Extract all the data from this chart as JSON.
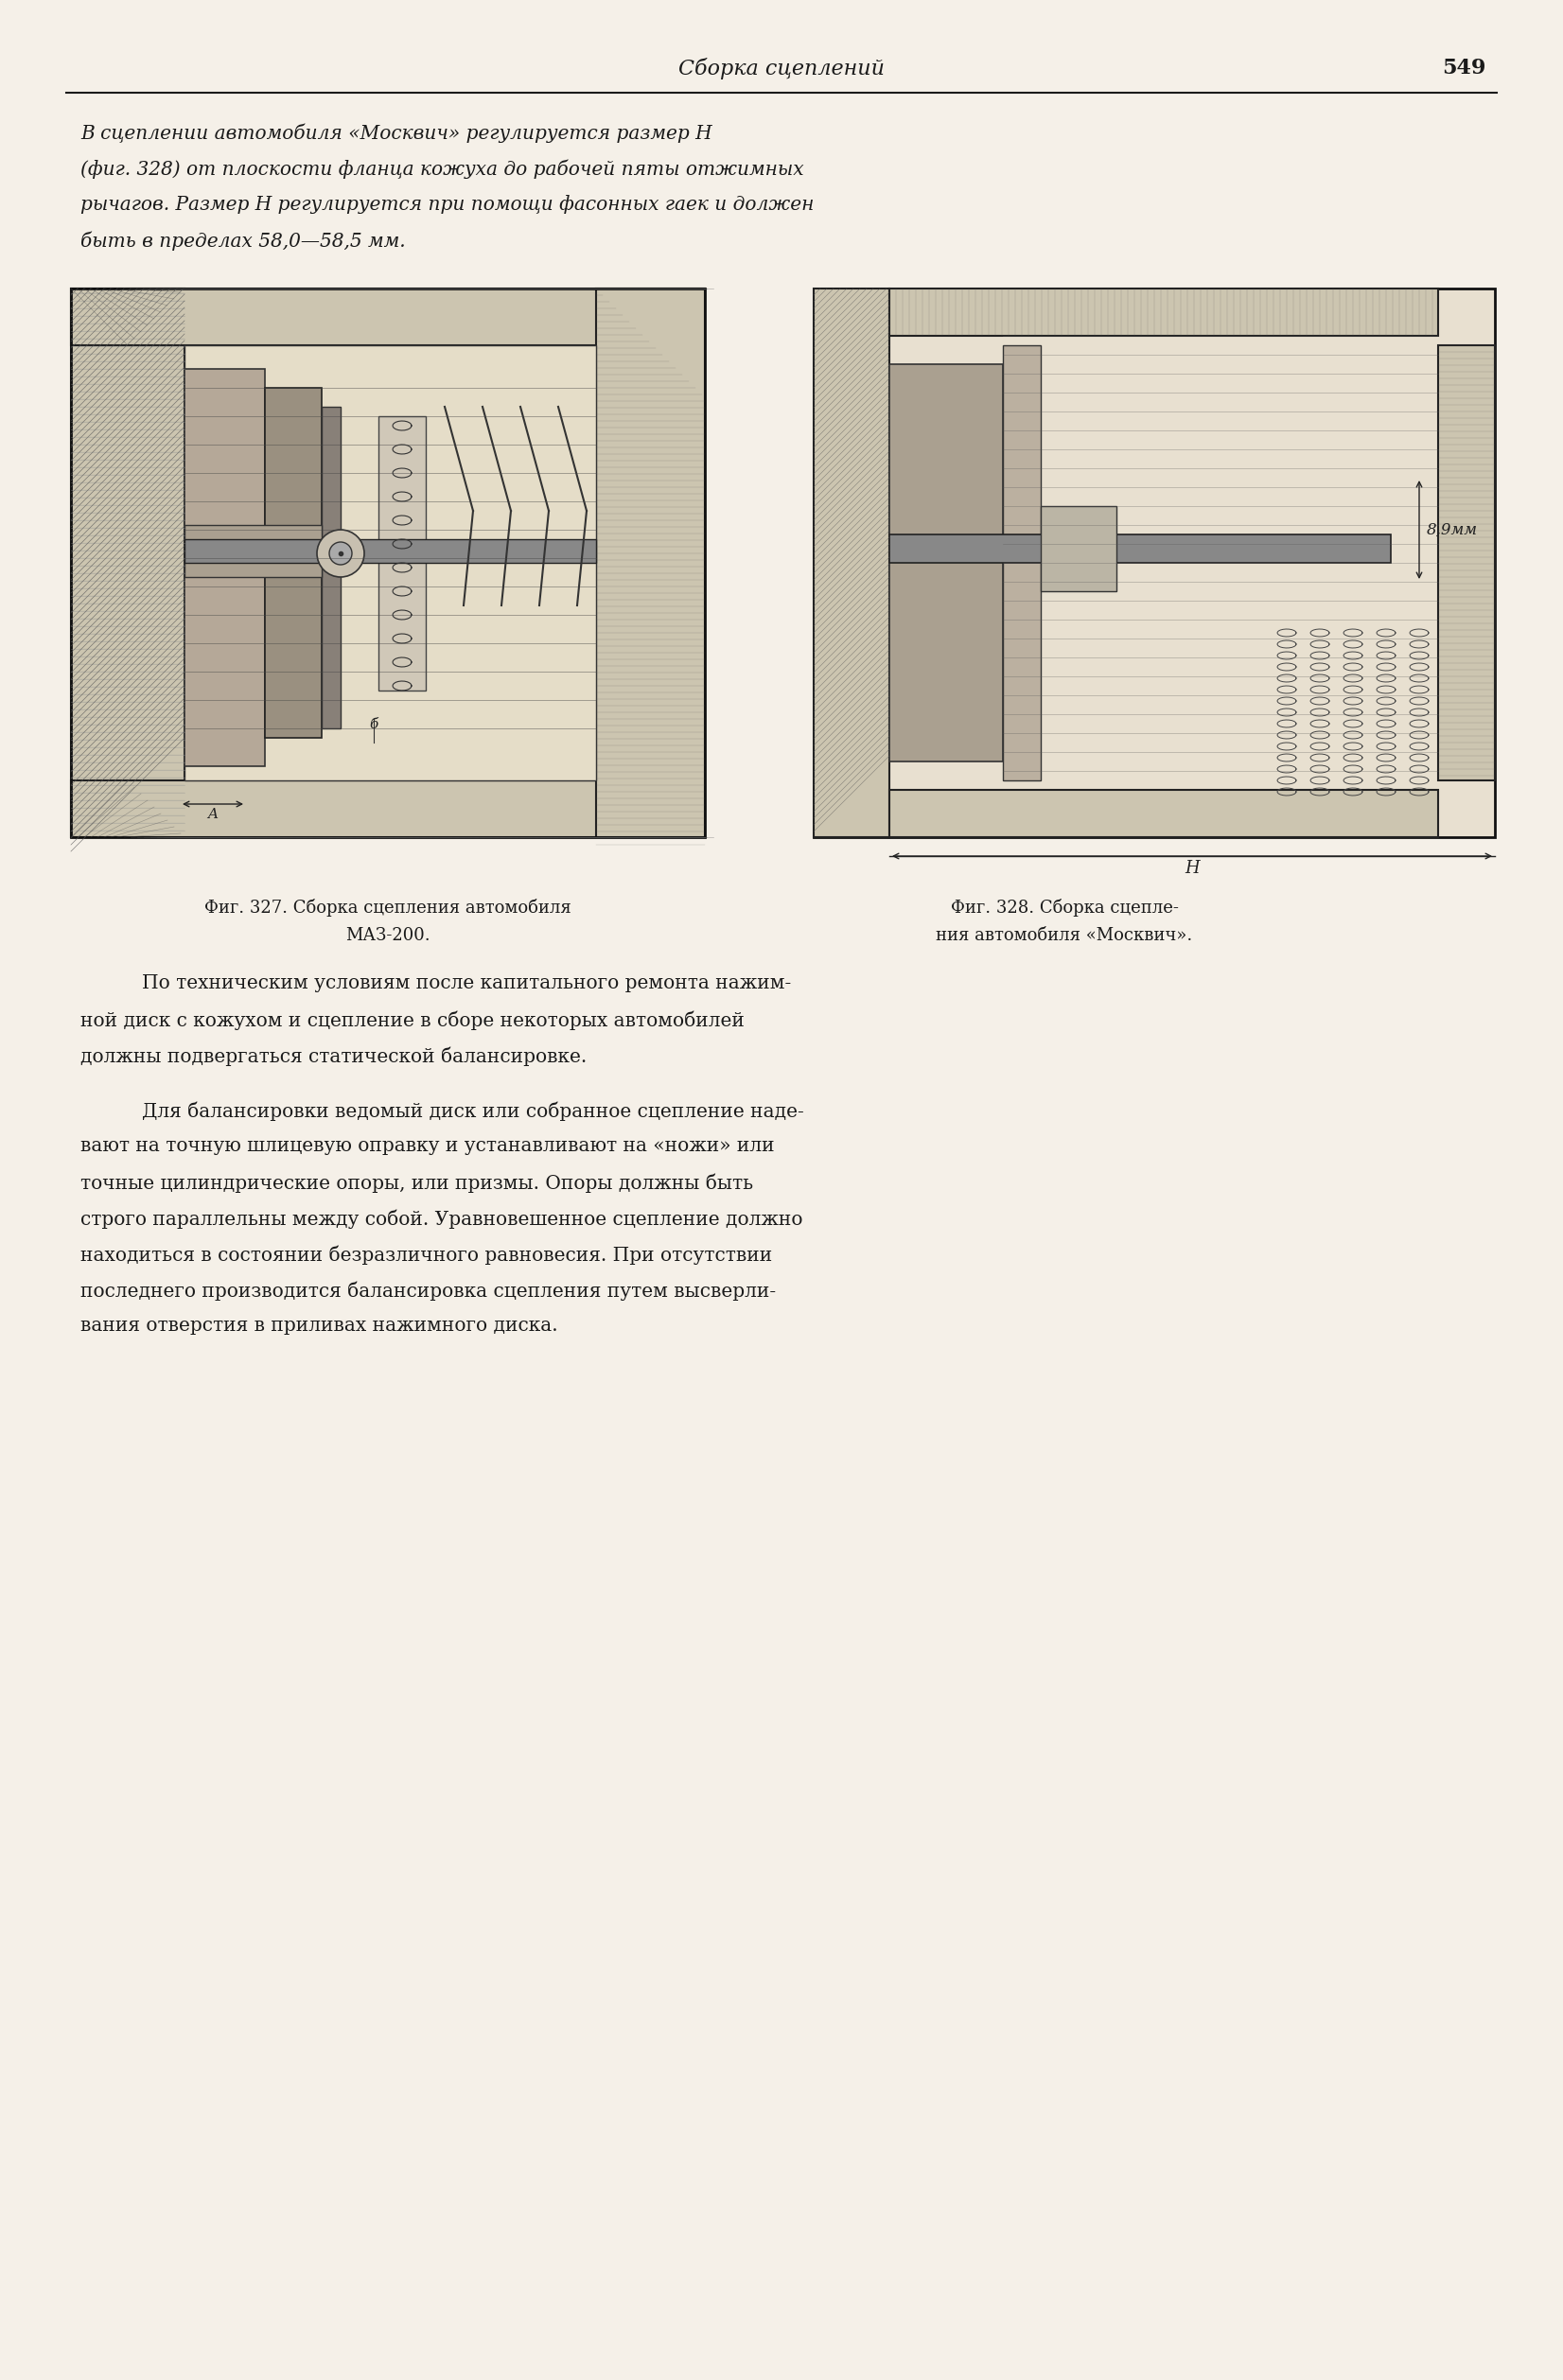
{
  "page_number": "549",
  "header_italic": "Сборка сцеплений",
  "bg_color": "#f5f0e8",
  "text_color": "#1a1a1a",
  "para1": "В сцеплении автомобиля «Москвич» регулируется размер H (фиг. 328) от плоскости фланца кожуха до рабочей пяты отжимных рычагов. Размер H регулируется при помощи фасонных гаек и должен быть в пределах 58,0—58,5 мм.",
  "caption1_line1": "Фиг. 327. Сборка сцепления автомобиля",
  "caption1_line2": "МАЗ-200.",
  "caption2_line1": "Фиг. 328. Сборка сцепле-",
  "caption2_line2": "ния автомобиля «Москвич».",
  "para2_line1": "По техническим условиям после капитального ремонта нажим-",
  "para2_line2": "ной диск с кожухом и сцепление в сборе некоторых автомобилей",
  "para2_line3": "должны подвергаться статической балансировке.",
  "para3_line1": "Для балансировки ведомый диск или собранное сцепление наде-",
  "para3_line2": "вают на точную шлицевую оправку и устанавливают на «ножи» или",
  "para3_line3": "точные цилиндрические опоры, или призмы. Опоры должны быть",
  "para3_line4": "строго параллельны между собой. Уравновешенное сцепление должно",
  "para3_line5": "находиться в состоянии безразличного равновесия. При отсутствии",
  "para3_line6": "последнего производится балансировка сцепления путем высверли-",
  "para3_line7": "вания отверстия в приливах нажимного диска.",
  "annotation_89mm": "8,9мм",
  "annotation_H": "H",
  "annotation_A": "A",
  "annotation_B": "б"
}
